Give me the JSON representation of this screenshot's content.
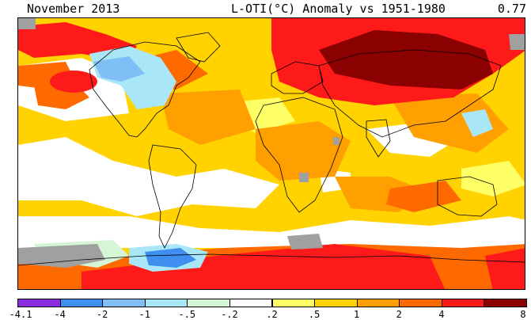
{
  "header": {
    "date": "November 2013",
    "title": "L-OTI(°C) Anomaly vs 1951-1980",
    "global_mean": "0.77"
  },
  "legend": {
    "colors": [
      "#8a2be2",
      "#3f8ff0",
      "#7fbff5",
      "#a9e6f7",
      "#d5f5d5",
      "#ffffff",
      "#ffff66",
      "#ffd200",
      "#ffa000",
      "#ff6a00",
      "#ff1a1a",
      "#8b0000"
    ],
    "labels": [
      "-4.1",
      "-4",
      "-2",
      "-1",
      "-.5",
      "-.2",
      ".2",
      ".5",
      "1",
      "2",
      "4",
      "8"
    ]
  },
  "map": {
    "palette": {
      "white": "#ffffff",
      "yellow": "#ffd200",
      "light_yellow": "#ffff66",
      "orange": "#ffa000",
      "dark_orange": "#ff6a00",
      "red": "#ff1a1a",
      "dark_red": "#8b0000",
      "light_blue": "#a9e6f7",
      "mid_blue": "#7fbff5",
      "blue": "#3f8ff0",
      "mint": "#d5f5d5",
      "missing": "#a0a0a0",
      "coast": "#000000"
    }
  }
}
